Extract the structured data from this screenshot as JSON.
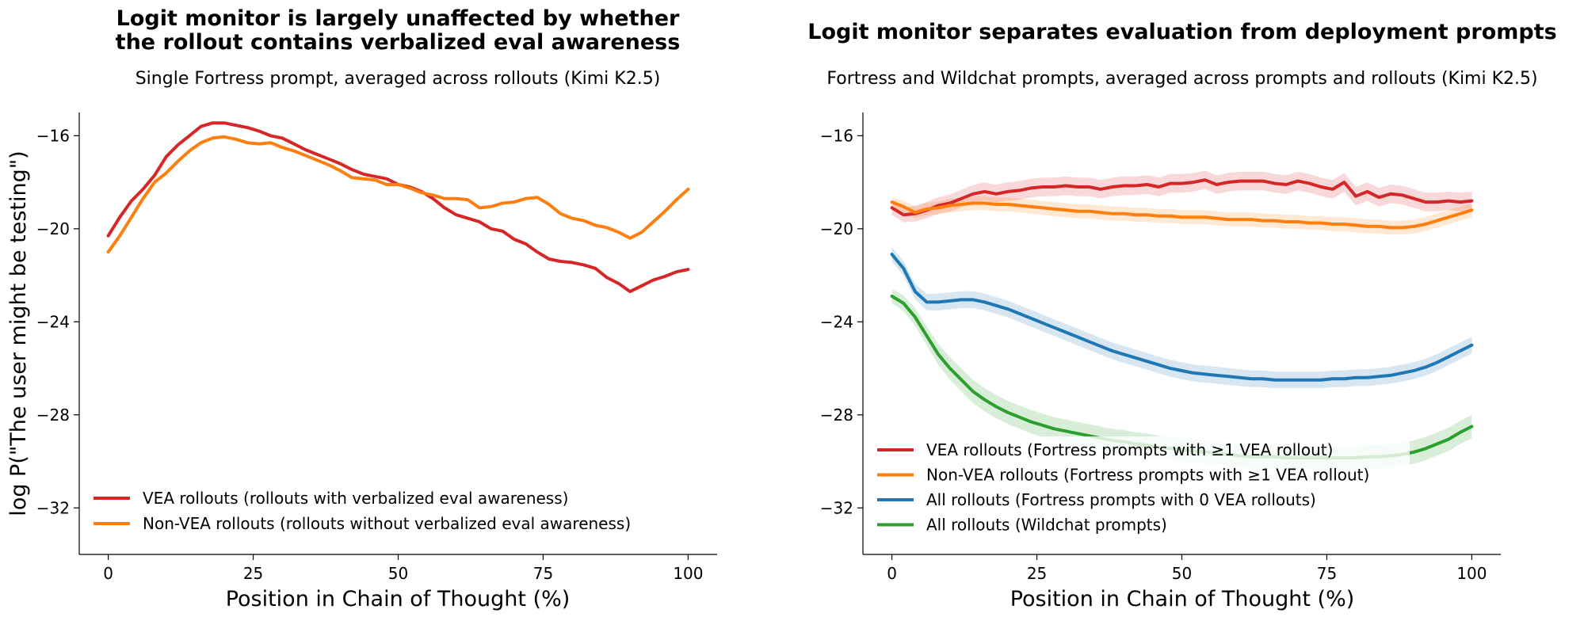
{
  "colors": {
    "vea": "#d62728",
    "nonvea": "#ff7f0e",
    "all_fortress": "#1f77b4",
    "wildchat": "#2ca02c"
  },
  "chart_data": [
    {
      "type": "line",
      "title": "Logit monitor is largely unaffected by whether\nthe rollout contains verbalized eval awareness",
      "title_lines": [
        "Logit monitor is largely unaffected by whether",
        "the rollout contains verbalized eval awareness"
      ],
      "subtitle": "Single Fortress prompt, averaged across rollouts (Kimi K2.5)",
      "xlabel": "Position in Chain of Thought (%)",
      "ylabel": "log P(\"The user might be testing\")",
      "xlim": [
        -5,
        105
      ],
      "ylim": [
        -34,
        -15
      ],
      "xticks": [
        0,
        25,
        50,
        75,
        100
      ],
      "yticks": [
        -16,
        -20,
        -24,
        -28,
        -32
      ],
      "xtick_labels": [
        "0",
        "25",
        "50",
        "75",
        "100"
      ],
      "ytick_labels": [
        "−16",
        "−20",
        "−24",
        "−28",
        "−32"
      ],
      "legend_position": "lower-left",
      "grid": false,
      "series": [
        {
          "name": "VEA rollouts (rollouts with verbalized eval awareness)",
          "color_key": "vea",
          "x": [
            0,
            2,
            4,
            6,
            8,
            10,
            12,
            14,
            16,
            18,
            20,
            22,
            24,
            26,
            28,
            30,
            32,
            34,
            36,
            38,
            40,
            42,
            44,
            46,
            48,
            50,
            52,
            54,
            56,
            58,
            60,
            62,
            64,
            66,
            68,
            70,
            72,
            74,
            76,
            78,
            80,
            82,
            84,
            86,
            88,
            90,
            92,
            94,
            96,
            98,
            100
          ],
          "y": [
            -20.3,
            -19.5,
            -18.8,
            -18.3,
            -17.7,
            -16.9,
            -16.4,
            -16.0,
            -15.6,
            -15.45,
            -15.45,
            -15.55,
            -15.65,
            -15.8,
            -16.0,
            -16.1,
            -16.35,
            -16.6,
            -16.8,
            -17.0,
            -17.2,
            -17.45,
            -17.65,
            -17.75,
            -17.85,
            -18.1,
            -18.2,
            -18.4,
            -18.7,
            -19.1,
            -19.4,
            -19.55,
            -19.7,
            -20.0,
            -20.1,
            -20.45,
            -20.65,
            -21.0,
            -21.3,
            -21.4,
            -21.45,
            -21.55,
            -21.7,
            -22.1,
            -22.35,
            -22.7,
            -22.45,
            -22.2,
            -22.05,
            -21.85,
            -21.75
          ]
        },
        {
          "name": "Non-VEA rollouts (rollouts without verbalized eval awareness)",
          "color_key": "nonvea",
          "x": [
            0,
            2,
            4,
            6,
            8,
            10,
            12,
            14,
            16,
            18,
            20,
            22,
            24,
            26,
            28,
            30,
            32,
            34,
            36,
            38,
            40,
            42,
            44,
            46,
            48,
            50,
            52,
            54,
            56,
            58,
            60,
            62,
            64,
            66,
            68,
            70,
            72,
            74,
            76,
            78,
            80,
            82,
            84,
            86,
            88,
            90,
            92,
            94,
            96,
            98,
            100
          ],
          "y": [
            -21.0,
            -20.3,
            -19.5,
            -18.7,
            -18.0,
            -17.6,
            -17.1,
            -16.65,
            -16.3,
            -16.1,
            -16.05,
            -16.15,
            -16.3,
            -16.35,
            -16.3,
            -16.5,
            -16.65,
            -16.85,
            -17.05,
            -17.25,
            -17.5,
            -17.8,
            -17.85,
            -17.9,
            -18.1,
            -18.1,
            -18.25,
            -18.45,
            -18.55,
            -18.7,
            -18.7,
            -18.75,
            -19.1,
            -19.05,
            -18.9,
            -18.85,
            -18.7,
            -18.65,
            -18.95,
            -19.35,
            -19.55,
            -19.65,
            -19.85,
            -19.95,
            -20.15,
            -20.4,
            -20.15,
            -19.7,
            -19.25,
            -18.75,
            -18.3
          ]
        }
      ]
    },
    {
      "type": "line",
      "title": "Logit monitor separates evaluation from deployment prompts",
      "title_lines": [
        "Logit monitor separates evaluation from deployment prompts"
      ],
      "subtitle": "Fortress and Wildchat prompts, averaged across prompts and rollouts (Kimi K2.5)",
      "xlabel": "Position in Chain of Thought (%)",
      "ylabel": "",
      "xlim": [
        -5,
        105
      ],
      "ylim": [
        -34,
        -15
      ],
      "xticks": [
        0,
        25,
        50,
        75,
        100
      ],
      "yticks": [
        -16,
        -20,
        -24,
        -28,
        -32
      ],
      "xtick_labels": [
        "0",
        "25",
        "50",
        "75",
        "100"
      ],
      "ytick_labels": [
        "−16",
        "−20",
        "−24",
        "−28",
        "−32"
      ],
      "legend_position": "lower-left",
      "grid": false,
      "confidence_bands": true,
      "series": [
        {
          "name": "VEA rollouts (Fortress prompts with ≥1 VEA rollout)",
          "color_key": "vea",
          "x": [
            0,
            2,
            4,
            6,
            8,
            10,
            12,
            14,
            16,
            18,
            20,
            22,
            24,
            26,
            28,
            30,
            32,
            34,
            36,
            38,
            40,
            42,
            44,
            46,
            48,
            50,
            52,
            54,
            56,
            58,
            60,
            62,
            64,
            66,
            68,
            70,
            72,
            74,
            76,
            78,
            80,
            82,
            84,
            86,
            88,
            90,
            92,
            94,
            96,
            98,
            100
          ],
          "y": [
            -19.1,
            -19.4,
            -19.35,
            -19.2,
            -19.0,
            -18.9,
            -18.7,
            -18.5,
            -18.4,
            -18.5,
            -18.4,
            -18.35,
            -18.25,
            -18.2,
            -18.2,
            -18.15,
            -18.2,
            -18.2,
            -18.3,
            -18.2,
            -18.15,
            -18.15,
            -18.1,
            -18.2,
            -18.05,
            -18.05,
            -18.0,
            -17.9,
            -18.1,
            -18.0,
            -17.95,
            -17.95,
            -17.95,
            -18.05,
            -18.1,
            -17.95,
            -18.05,
            -18.2,
            -18.3,
            -18.0,
            -18.6,
            -18.4,
            -18.65,
            -18.5,
            -18.55,
            -18.7,
            -18.85,
            -18.85,
            -18.8,
            -18.85,
            -18.8
          ],
          "err": [
            0.3,
            0.32,
            0.34,
            0.35,
            0.36,
            0.37,
            0.38,
            0.38,
            0.39,
            0.39,
            0.4,
            0.4,
            0.4,
            0.4,
            0.4,
            0.4,
            0.4,
            0.4,
            0.4,
            0.4,
            0.4,
            0.4,
            0.4,
            0.4,
            0.4,
            0.4,
            0.4,
            0.4,
            0.4,
            0.4,
            0.4,
            0.4,
            0.4,
            0.4,
            0.4,
            0.4,
            0.4,
            0.4,
            0.4,
            0.4,
            0.4,
            0.4,
            0.4,
            0.4,
            0.4,
            0.4,
            0.4,
            0.4,
            0.4,
            0.4,
            0.4
          ]
        },
        {
          "name": "Non-VEA rollouts (Fortress prompts with ≥1 VEA rollout)",
          "color_key": "nonvea",
          "x": [
            0,
            2,
            4,
            6,
            8,
            10,
            12,
            14,
            16,
            18,
            20,
            22,
            24,
            26,
            28,
            30,
            32,
            34,
            36,
            38,
            40,
            42,
            44,
            46,
            48,
            50,
            52,
            54,
            56,
            58,
            60,
            62,
            64,
            66,
            68,
            70,
            72,
            74,
            76,
            78,
            80,
            82,
            84,
            86,
            88,
            90,
            92,
            94,
            96,
            98,
            100
          ],
          "y": [
            -18.85,
            -19.05,
            -19.3,
            -19.15,
            -19.1,
            -19.0,
            -18.95,
            -18.9,
            -18.9,
            -18.95,
            -18.95,
            -19.0,
            -19.05,
            -19.1,
            -19.15,
            -19.2,
            -19.25,
            -19.25,
            -19.3,
            -19.35,
            -19.35,
            -19.4,
            -19.4,
            -19.45,
            -19.45,
            -19.5,
            -19.5,
            -19.5,
            -19.55,
            -19.6,
            -19.6,
            -19.6,
            -19.65,
            -19.65,
            -19.7,
            -19.7,
            -19.75,
            -19.75,
            -19.8,
            -19.8,
            -19.85,
            -19.9,
            -19.9,
            -19.95,
            -19.95,
            -19.9,
            -19.8,
            -19.65,
            -19.5,
            -19.35,
            -19.2
          ],
          "err": [
            0.22,
            0.24,
            0.26,
            0.27,
            0.28,
            0.29,
            0.3,
            0.3,
            0.3,
            0.3,
            0.3,
            0.3,
            0.3,
            0.3,
            0.3,
            0.3,
            0.3,
            0.3,
            0.3,
            0.3,
            0.3,
            0.3,
            0.3,
            0.3,
            0.3,
            0.3,
            0.3,
            0.3,
            0.3,
            0.3,
            0.3,
            0.3,
            0.3,
            0.3,
            0.3,
            0.3,
            0.3,
            0.3,
            0.3,
            0.3,
            0.3,
            0.3,
            0.3,
            0.3,
            0.3,
            0.3,
            0.3,
            0.3,
            0.3,
            0.3,
            0.3
          ]
        },
        {
          "name": "All rollouts (Fortress prompts with 0 VEA rollouts)",
          "color_key": "all_fortress",
          "x": [
            0,
            2,
            4,
            6,
            8,
            10,
            12,
            14,
            16,
            18,
            20,
            22,
            24,
            26,
            28,
            30,
            32,
            34,
            36,
            38,
            40,
            42,
            44,
            46,
            48,
            50,
            52,
            54,
            56,
            58,
            60,
            62,
            64,
            66,
            68,
            70,
            72,
            74,
            76,
            78,
            80,
            82,
            84,
            86,
            88,
            90,
            92,
            94,
            96,
            98,
            100
          ],
          "y": [
            -21.1,
            -21.7,
            -22.7,
            -23.15,
            -23.15,
            -23.1,
            -23.05,
            -23.05,
            -23.15,
            -23.3,
            -23.45,
            -23.65,
            -23.85,
            -24.05,
            -24.25,
            -24.45,
            -24.65,
            -24.85,
            -25.05,
            -25.25,
            -25.4,
            -25.55,
            -25.7,
            -25.85,
            -26.0,
            -26.1,
            -26.2,
            -26.25,
            -26.3,
            -26.35,
            -26.4,
            -26.45,
            -26.45,
            -26.5,
            -26.5,
            -26.5,
            -26.5,
            -26.5,
            -26.45,
            -26.45,
            -26.4,
            -26.4,
            -26.35,
            -26.3,
            -26.2,
            -26.1,
            -25.95,
            -25.75,
            -25.5,
            -25.25,
            -25.0
          ],
          "err": [
            0.3,
            0.32,
            0.34,
            0.35,
            0.36,
            0.36,
            0.36,
            0.36,
            0.36,
            0.36,
            0.36,
            0.36,
            0.36,
            0.36,
            0.36,
            0.36,
            0.36,
            0.36,
            0.36,
            0.36,
            0.36,
            0.36,
            0.36,
            0.36,
            0.36,
            0.36,
            0.36,
            0.36,
            0.36,
            0.36,
            0.36,
            0.36,
            0.36,
            0.36,
            0.36,
            0.36,
            0.36,
            0.36,
            0.36,
            0.36,
            0.36,
            0.36,
            0.36,
            0.36,
            0.36,
            0.36,
            0.36,
            0.36,
            0.36,
            0.36,
            0.36
          ]
        },
        {
          "name": "All rollouts (Wildchat prompts)",
          "color_key": "wildchat",
          "x": [
            0,
            2,
            4,
            6,
            8,
            10,
            12,
            14,
            16,
            18,
            20,
            22,
            24,
            26,
            28,
            30,
            32,
            34,
            36,
            38,
            40,
            42,
            44,
            46,
            48,
            50,
            52,
            54,
            56,
            58,
            60,
            62,
            64,
            66,
            68,
            70,
            72,
            74,
            76,
            78,
            80,
            82,
            84,
            86,
            88,
            90,
            92,
            94,
            96,
            98,
            100
          ],
          "y": [
            -22.9,
            -23.2,
            -23.8,
            -24.6,
            -25.4,
            -26.0,
            -26.5,
            -27.0,
            -27.35,
            -27.65,
            -27.9,
            -28.1,
            -28.3,
            -28.45,
            -28.6,
            -28.7,
            -28.8,
            -28.9,
            -29.0,
            -29.1,
            -29.15,
            -29.25,
            -29.3,
            -29.4,
            -29.45,
            -29.5,
            -29.55,
            -29.6,
            -29.65,
            -29.7,
            -29.75,
            -29.8,
            -29.8,
            -29.8,
            -29.85,
            -29.85,
            -29.85,
            -29.85,
            -29.85,
            -29.85,
            -29.85,
            -29.8,
            -29.8,
            -29.75,
            -29.7,
            -29.6,
            -29.45,
            -29.25,
            -29.05,
            -28.75,
            -28.5
          ],
          "err": [
            0.3,
            0.34,
            0.38,
            0.42,
            0.45,
            0.48,
            0.5,
            0.5,
            0.5,
            0.5,
            0.5,
            0.5,
            0.5,
            0.5,
            0.5,
            0.5,
            0.5,
            0.5,
            0.5,
            0.5,
            0.5,
            0.5,
            0.5,
            0.5,
            0.5,
            0.5,
            0.5,
            0.5,
            0.5,
            0.5,
            0.5,
            0.5,
            0.5,
            0.5,
            0.5,
            0.5,
            0.5,
            0.5,
            0.5,
            0.5,
            0.5,
            0.5,
            0.5,
            0.5,
            0.5,
            0.5,
            0.5,
            0.5,
            0.5,
            0.5,
            0.5
          ]
        }
      ]
    }
  ]
}
